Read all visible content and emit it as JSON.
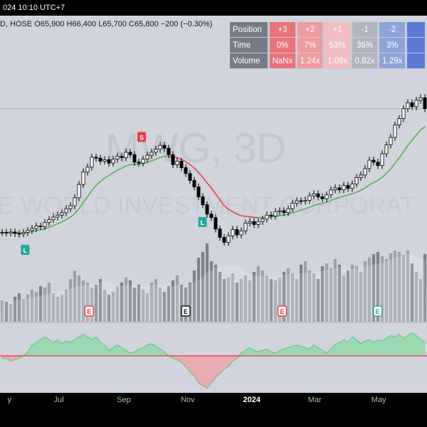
{
  "header": {
    "time": "024 10:10 UTC+7"
  },
  "legend": {
    "ohlc": "D, HOSE  O65,900  H66,400  L65,700  C65,800  −200 (−0.30%)"
  },
  "stats_table": {
    "row_labels": [
      "Position",
      "Time",
      "Volume"
    ],
    "columns": [
      {
        "position": "+3",
        "time": "0%",
        "volume": "NaNx",
        "color": "#e8737b"
      },
      {
        "position": "+2",
        "time": "7%",
        "volume": "1.24x",
        "color": "#ef9aa0"
      },
      {
        "position": "+1",
        "time": "53%",
        "volume": "1.08x",
        "color": "#f4bcc0"
      },
      {
        "position": "-1",
        "time": "36%",
        "volume": "0.82x",
        "color": "#b2b5be"
      },
      {
        "position": "-2",
        "time": "3%",
        "volume": "1.29x",
        "color": "#8fa3d9"
      },
      {
        "position": "",
        "time": "",
        "volume": "",
        "color": "#5b7bd6"
      }
    ]
  },
  "watermark": {
    "symbol": "MWG, 3D",
    "name": "E WORLD INVESTMENT CORPORAT"
  },
  "markers": [
    {
      "label": "L",
      "date": "2023-05-30",
      "color": "#26a69a"
    },
    {
      "label": "S",
      "date": "2023-09-18",
      "color": "#f23645"
    },
    {
      "label": "L",
      "date": "2023-11-15",
      "color": "#26a69a"
    },
    {
      "label": "E",
      "date": "2023-07-30",
      "color": "#f23645"
    },
    {
      "label": "E",
      "date": "2023-10-30",
      "color": "#131722"
    },
    {
      "label": "E",
      "date": "2024-01-30",
      "color": "#f23645"
    },
    {
      "label": "E",
      "date": "2024-04-30",
      "color": "#26a69a"
    }
  ],
  "chart_data": {
    "type": "candlestick",
    "x_ticks": [
      {
        "label": "y",
        "date": "2023-05-15",
        "bold": false
      },
      {
        "label": "Jul",
        "date": "2023-07-01",
        "bold": false
      },
      {
        "label": "Sep",
        "date": "2023-09-01",
        "bold": false
      },
      {
        "label": "Nov",
        "date": "2023-11-01",
        "bold": false
      },
      {
        "label": "2024",
        "date": "2024-01-01",
        "bold": true
      },
      {
        "label": "Mar",
        "date": "2024-03-01",
        "bold": false
      },
      {
        "label": "May",
        "date": "2024-05-01",
        "bold": false
      }
    ],
    "x_range": [
      "2023-05-06",
      "2024-06-16"
    ],
    "price_range": [
      36000,
      70500
    ],
    "reference_price": 65800,
    "closes": [
      40800,
      40700,
      40900,
      40600,
      40500,
      40800,
      41200,
      41600,
      42100,
      42000,
      42800,
      43400,
      43900,
      44300,
      44800,
      45600,
      46200,
      47800,
      50500,
      53000,
      54000,
      56000,
      55800,
      55200,
      55500,
      54800,
      55600,
      56200,
      55900,
      57000,
      56500,
      55000,
      54800,
      55600,
      56400,
      57000,
      57600,
      58400,
      57800,
      56500,
      54500,
      55200,
      53900,
      52700,
      51300,
      50000,
      48000,
      46400,
      44500,
      43800,
      41500,
      39800,
      38800,
      40100,
      41400,
      40300,
      41100,
      42700,
      43000,
      42400,
      43000,
      43500,
      44300,
      44100,
      45000,
      45200,
      44800,
      45600,
      46700,
      47200,
      47100,
      47300,
      48200,
      48600,
      48000,
      47600,
      48400,
      49400,
      49800,
      49400,
      50300,
      49700,
      50600,
      51900,
      52400,
      53700,
      55400,
      55000,
      54300,
      56700,
      58500,
      60000,
      62500,
      63800,
      65800,
      67000,
      66200,
      67500,
      68000,
      65800
    ],
    "ema_values": [
      40800,
      40800,
      40800,
      40750,
      40700,
      40700,
      40800,
      40950,
      41150,
      41300,
      41550,
      41850,
      42200,
      42550,
      42950,
      43400,
      43900,
      44600,
      45600,
      46800,
      48000,
      49300,
      50300,
      51100,
      51800,
      52300,
      52850,
      53400,
      53750,
      54250,
      54500,
      54550,
      54550,
      54700,
      54950,
      55250,
      55550,
      55950,
      56150,
      56200,
      56000,
      55900,
      55550,
      55100,
      54500,
      53800,
      52900,
      51900,
      50800,
      49800,
      48600,
      47400,
      46200,
      45500,
      45000,
      44500,
      44200,
      44050,
      43950,
      43850,
      43800,
      43800,
      43850,
      43900,
      44050,
      44200,
      44300,
      44450,
      44750,
      45050,
      45300,
      45550,
      45900,
      46250,
      46500,
      46650,
      46900,
      47250,
      47600,
      47850,
      48150,
      48350,
      48600,
      48950,
      49300,
      49800,
      50400,
      50900,
      51300,
      51950,
      52750,
      53650,
      54750,
      55850,
      57100,
      58350,
      59400,
      60500,
      61500,
      62200
    ],
    "volumes": [
      30,
      28,
      25,
      35,
      40,
      32,
      38,
      45,
      42,
      50,
      48,
      55,
      40,
      35,
      38,
      45,
      60,
      72,
      65,
      58,
      55,
      48,
      52,
      60,
      45,
      38,
      42,
      50,
      55,
      62,
      58,
      48,
      52,
      45,
      40,
      55,
      60,
      48,
      42,
      50,
      58,
      65,
      52,
      48,
      55,
      72,
      90,
      98,
      110,
      85,
      80,
      70,
      60,
      62,
      68,
      55,
      60,
      65,
      58,
      70,
      78,
      72,
      65,
      60,
      58,
      62,
      70,
      75,
      68,
      60,
      80,
      85,
      72,
      68,
      60,
      78,
      82,
      75,
      88,
      80,
      65,
      72,
      80,
      78,
      70,
      85,
      90,
      95,
      98,
      92,
      88,
      96,
      100,
      98,
      94,
      100,
      82,
      70,
      60,
      95
    ],
    "oscillator": [
      -2,
      -2,
      -4,
      -3,
      -2,
      0,
      3,
      8,
      10,
      12,
      14,
      12,
      10,
      12,
      9,
      11,
      10,
      12,
      14,
      16,
      14,
      12,
      14,
      10,
      8,
      4,
      6,
      8,
      6,
      4,
      2,
      3,
      5,
      6,
      8,
      9,
      7,
      5,
      3,
      0,
      -2,
      -3,
      -5,
      -8,
      -12,
      -15,
      -20,
      -22,
      -24,
      -20,
      -16,
      -13,
      -10,
      -8,
      -4,
      -2,
      2,
      4,
      6,
      4,
      3,
      4,
      5,
      3,
      2,
      4,
      5,
      6,
      7,
      8,
      7,
      6,
      5,
      8,
      6,
      4,
      2,
      5,
      8,
      10,
      12,
      10,
      14,
      12,
      9,
      11,
      12,
      10,
      12,
      11,
      13,
      15,
      14,
      16,
      13,
      15,
      17,
      15,
      12,
      10
    ]
  }
}
